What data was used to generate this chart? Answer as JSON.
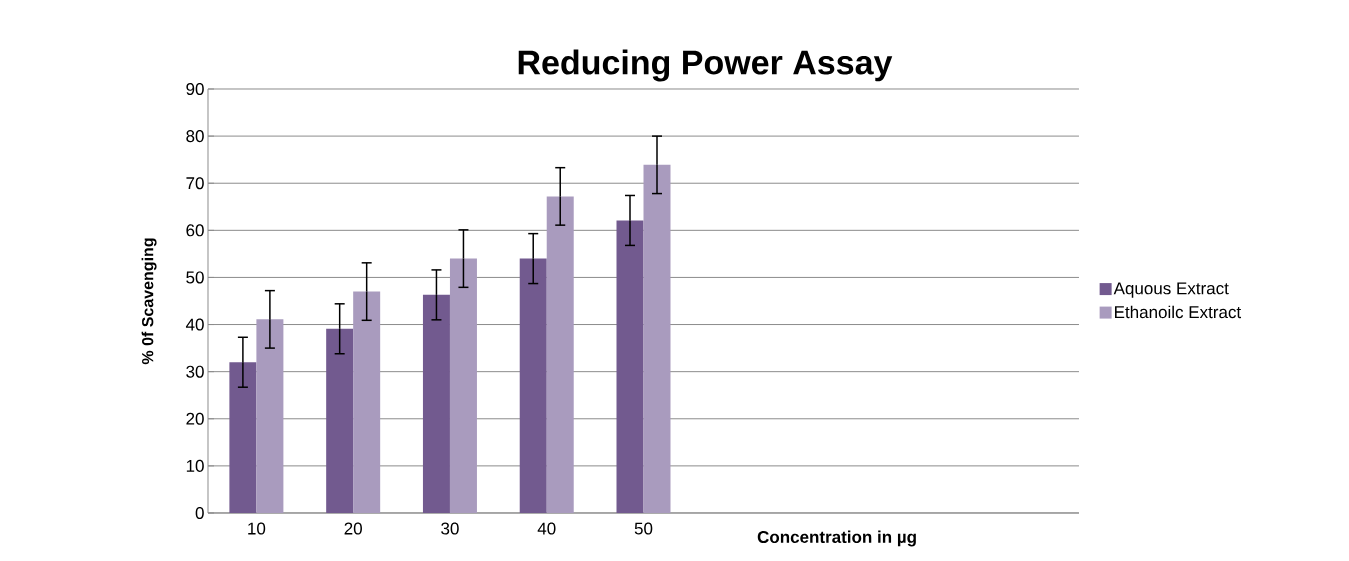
{
  "chart_data": {
    "type": "bar",
    "title": "Reducing Power Assay",
    "xlabel": "Concentration in  µg",
    "ylabel": "% 0f Scavenging",
    "categories": [
      "10",
      "20",
      "30",
      "40",
      "50",
      null,
      null,
      null,
      null
    ],
    "series": [
      {
        "name": "Aquous Extract",
        "color": "#725a8f",
        "values": [
          32.0,
          39.1,
          46.3,
          54.0,
          62.1,
          null,
          null,
          null,
          null
        ],
        "errors": [
          5.3,
          5.3,
          5.3,
          5.3,
          5.3,
          null,
          null,
          null,
          null
        ]
      },
      {
        "name": "Ethanoilc Extract",
        "color": "#a99bbe",
        "values": [
          41.1,
          47.0,
          54.0,
          67.2,
          73.9,
          null,
          null,
          null,
          null
        ],
        "errors": [
          6.1,
          6.1,
          6.1,
          6.1,
          6.1,
          null,
          null,
          null,
          null
        ]
      }
    ],
    "ylim": [
      0,
      90
    ],
    "yticks": [
      0,
      10,
      20,
      30,
      40,
      50,
      60,
      70,
      80,
      90
    ],
    "grid": "y",
    "legend": "right"
  }
}
